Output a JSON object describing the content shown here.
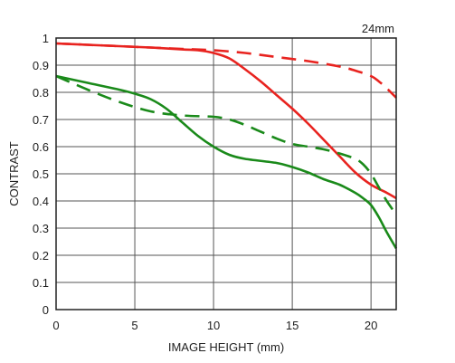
{
  "chart_data": {
    "type": "line",
    "title": "",
    "annotation": "24mm",
    "xlabel": "IMAGE HEIGHT (mm)",
    "ylabel": "CONTRAST",
    "xlim": [
      0,
      21.6
    ],
    "ylim": [
      0,
      1
    ],
    "xticks": [
      "0",
      "5",
      "10",
      "15",
      "20"
    ],
    "xtick_values": [
      0,
      5,
      10,
      15,
      20
    ],
    "yticks": [
      "0",
      "0.1",
      "0.2",
      "0.3",
      "0.4",
      "0.5",
      "0.6",
      "0.7",
      "0.8",
      "0.9",
      "1"
    ],
    "ytick_values": [
      0,
      0.1,
      0.2,
      0.3,
      0.4,
      0.5,
      0.6,
      0.7,
      0.8,
      0.9,
      1
    ],
    "grid": true,
    "series": [
      {
        "color": "#e8231f",
        "dash": "solid",
        "x": [
          0,
          2,
          4,
          6,
          8,
          9,
          10,
          11,
          12,
          13,
          14,
          15,
          16,
          17,
          18,
          19,
          20,
          21,
          21.6
        ],
        "y": [
          0.98,
          0.975,
          0.97,
          0.965,
          0.958,
          0.955,
          0.945,
          0.925,
          0.885,
          0.84,
          0.79,
          0.74,
          0.685,
          0.625,
          0.565,
          0.505,
          0.46,
          0.43,
          0.41
        ]
      },
      {
        "color": "#e8231f",
        "dash": "dashed",
        "x": [
          0,
          2,
          4,
          6,
          8,
          10,
          12,
          14,
          16,
          18,
          19,
          20,
          20.5,
          21,
          21.6
        ],
        "y": [
          0.98,
          0.975,
          0.97,
          0.965,
          0.96,
          0.955,
          0.945,
          0.93,
          0.915,
          0.895,
          0.88,
          0.86,
          0.84,
          0.815,
          0.78
        ]
      },
      {
        "color": "#1a8a1a",
        "dash": "solid",
        "x": [
          0,
          2,
          4,
          5,
          6,
          7,
          8,
          9,
          10,
          11,
          12,
          14,
          15,
          16,
          17,
          18,
          19,
          19.5,
          20,
          20.5,
          21,
          21.6
        ],
        "y": [
          0.86,
          0.835,
          0.81,
          0.795,
          0.775,
          0.74,
          0.69,
          0.64,
          0.6,
          0.57,
          0.555,
          0.54,
          0.525,
          0.505,
          0.48,
          0.46,
          0.43,
          0.41,
          0.385,
          0.34,
          0.285,
          0.225
        ]
      },
      {
        "color": "#1a8a1a",
        "dash": "dashed",
        "x": [
          0,
          2,
          4,
          6,
          8,
          10,
          11,
          12,
          13,
          14,
          15,
          16,
          17,
          18,
          19,
          19.5,
          20,
          20.5,
          21,
          21.6
        ],
        "y": [
          0.86,
          0.81,
          0.765,
          0.73,
          0.715,
          0.71,
          0.7,
          0.68,
          0.655,
          0.63,
          0.61,
          0.6,
          0.59,
          0.575,
          0.555,
          0.535,
          0.5,
          0.45,
          0.4,
          0.35
        ]
      }
    ]
  }
}
